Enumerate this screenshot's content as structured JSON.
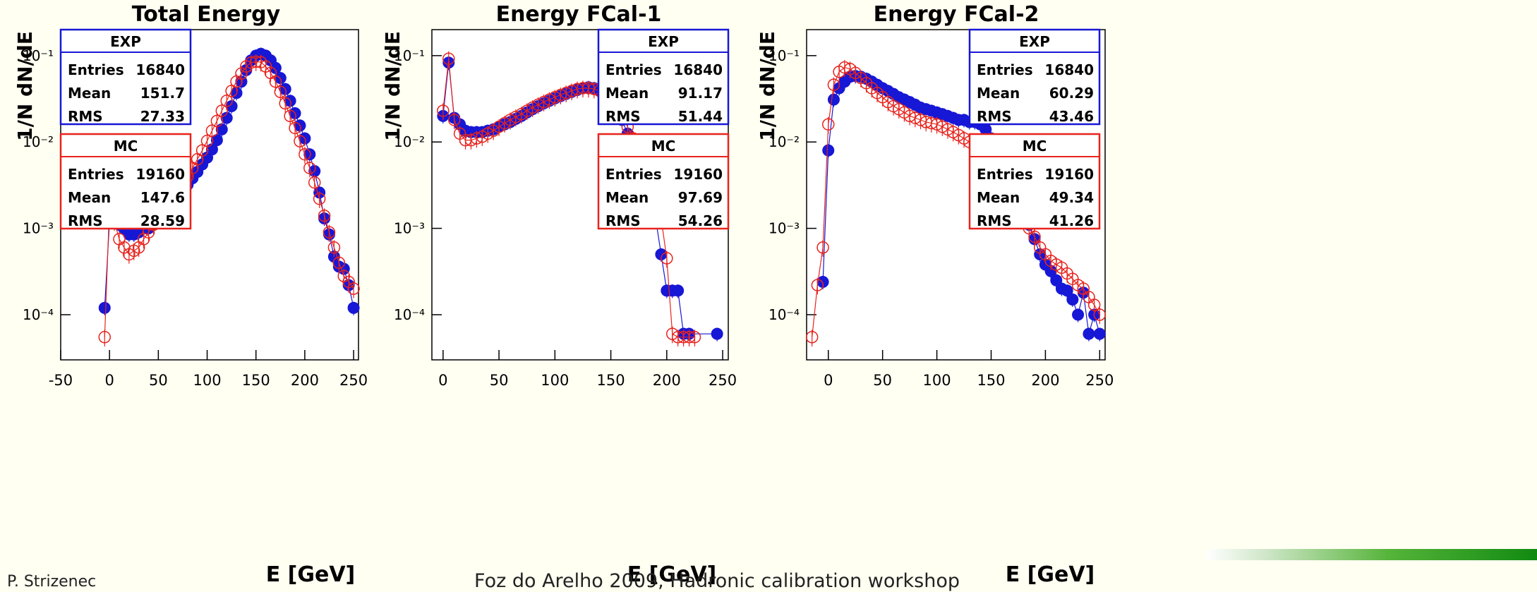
{
  "colors": {
    "exp": "#1717d6",
    "mc": "#e8231d",
    "background": "#fffff2"
  },
  "footer": {
    "author": "P. Strizenec",
    "venue": "Foz do Arelho 2009, Hadronic calibration workshop"
  },
  "chart_data": [
    {
      "type": "scatter",
      "title": "Total Energy",
      "xlabel": "E   [GeV]",
      "ylabel": "1/N dN/dE",
      "xlim": [
        -50,
        255
      ],
      "ylim": [
        3e-05,
        0.2
      ],
      "yscale": "log",
      "xticks": [
        "-50",
        "0",
        "50",
        "100",
        "150",
        "200",
        "250"
      ],
      "yticks": [
        "10⁻⁴",
        "10⁻³",
        "10⁻²",
        "10⁻¹"
      ],
      "stats": [
        {
          "label": "EXP",
          "entries": "16840",
          "mean": "151.7",
          "rms": "27.33"
        },
        {
          "label": "MC",
          "entries": "19160",
          "mean": "147.6",
          "rms": "28.59"
        }
      ],
      "series": [
        {
          "name": "EXP",
          "x": [
            -5,
            0,
            5,
            10,
            15,
            20,
            25,
            30,
            35,
            40,
            45,
            50,
            55,
            60,
            65,
            70,
            75,
            80,
            85,
            90,
            95,
            100,
            105,
            110,
            115,
            120,
            125,
            130,
            135,
            140,
            145,
            150,
            155,
            160,
            165,
            170,
            175,
            180,
            185,
            190,
            195,
            200,
            205,
            210,
            215,
            220,
            225,
            230,
            235,
            240,
            245,
            250
          ],
          "y": [
            0.00012,
            0.0012,
            0.0012,
            0.0011,
            0.001,
            0.00085,
            0.00085,
            0.0009,
            0.001,
            0.001,
            0.0011,
            0.0012,
            0.0014,
            0.0016,
            0.0019,
            0.0023,
            0.0027,
            0.0032,
            0.0038,
            0.0045,
            0.0055,
            0.0066,
            0.0082,
            0.0105,
            0.014,
            0.019,
            0.026,
            0.037,
            0.05,
            0.068,
            0.088,
            0.1,
            0.105,
            0.1,
            0.088,
            0.072,
            0.055,
            0.041,
            0.03,
            0.0215,
            0.0155,
            0.011,
            0.0072,
            0.0046,
            0.0026,
            0.0013,
            0.00085,
            0.00047,
            0.00036,
            0.00034,
            0.00022,
            0.00012
          ]
        },
        {
          "name": "MC",
          "x": [
            -5,
            0,
            5,
            10,
            15,
            20,
            25,
            30,
            35,
            40,
            45,
            50,
            55,
            60,
            65,
            70,
            75,
            80,
            85,
            90,
            95,
            100,
            105,
            110,
            115,
            120,
            125,
            130,
            135,
            140,
            145,
            150,
            155,
            160,
            165,
            170,
            175,
            180,
            185,
            190,
            195,
            200,
            205,
            210,
            215,
            220,
            225,
            230,
            235,
            240,
            245,
            250
          ],
          "y": [
            5.5e-05,
            0.00185,
            0.0012,
            0.00075,
            0.0006,
            0.0005,
            0.00055,
            0.0006,
            0.00075,
            0.0009,
            0.0011,
            0.0013,
            0.0015,
            0.0018,
            0.0021,
            0.0026,
            0.0032,
            0.004,
            0.005,
            0.0063,
            0.008,
            0.0103,
            0.0135,
            0.0175,
            0.023,
            0.03,
            0.039,
            0.05,
            0.062,
            0.075,
            0.083,
            0.085,
            0.084,
            0.075,
            0.063,
            0.05,
            0.038,
            0.028,
            0.02,
            0.0145,
            0.0102,
            0.0072,
            0.005,
            0.0034,
            0.0022,
            0.0014,
            0.0009,
            0.0006,
            0.0004,
            0.00028,
            0.00024,
            0.0002
          ]
        }
      ]
    },
    {
      "type": "scatter",
      "title": "Energy FCal-1",
      "xlabel": "E   [GeV]",
      "ylabel": "1/N dN/dE",
      "xlim": [
        -10,
        255
      ],
      "ylim": [
        3e-05,
        0.2
      ],
      "yscale": "log",
      "xticks": [
        "0",
        "50",
        "100",
        "150",
        "200",
        "250"
      ],
      "yticks": [
        "10⁻⁴",
        "10⁻³",
        "10⁻²",
        "10⁻¹"
      ],
      "stats": [
        {
          "label": "EXP",
          "entries": "16840",
          "mean": "91.17",
          "rms": "51.44"
        },
        {
          "label": "MC",
          "entries": "19160",
          "mean": "97.69",
          "rms": "54.26"
        }
      ],
      "series": [
        {
          "name": "EXP",
          "x": [
            0,
            5,
            10,
            15,
            20,
            25,
            30,
            35,
            40,
            45,
            50,
            55,
            60,
            65,
            70,
            75,
            80,
            85,
            90,
            95,
            100,
            105,
            110,
            115,
            120,
            125,
            130,
            135,
            140,
            145,
            150,
            155,
            160,
            165,
            170,
            175,
            180,
            185,
            190,
            195,
            200,
            205,
            210,
            215,
            220,
            245
          ],
          "y": [
            0.02,
            0.083,
            0.019,
            0.016,
            0.0135,
            0.013,
            0.013,
            0.013,
            0.0135,
            0.014,
            0.015,
            0.016,
            0.017,
            0.0185,
            0.02,
            0.022,
            0.024,
            0.026,
            0.028,
            0.03,
            0.032,
            0.034,
            0.036,
            0.038,
            0.04,
            0.042,
            0.043,
            0.042,
            0.04,
            0.036,
            0.03,
            0.024,
            0.018,
            0.0125,
            0.0085,
            0.0055,
            0.0035,
            0.0021,
            0.0013,
            0.0005,
            0.00019,
            0.00019,
            0.00019,
            6e-05,
            6e-05,
            6e-05
          ]
        },
        {
          "name": "MC",
          "x": [
            0,
            5,
            10,
            15,
            20,
            25,
            30,
            35,
            40,
            45,
            50,
            55,
            60,
            65,
            70,
            75,
            80,
            85,
            90,
            95,
            100,
            105,
            110,
            115,
            120,
            125,
            130,
            135,
            140,
            145,
            150,
            155,
            160,
            165,
            170,
            175,
            180,
            185,
            190,
            195,
            200,
            205,
            210,
            215,
            220,
            225
          ],
          "y": [
            0.023,
            0.092,
            0.018,
            0.0125,
            0.0105,
            0.0105,
            0.011,
            0.0115,
            0.0125,
            0.0135,
            0.015,
            0.0165,
            0.018,
            0.0195,
            0.021,
            0.023,
            0.025,
            0.027,
            0.029,
            0.031,
            0.033,
            0.035,
            0.037,
            0.039,
            0.041,
            0.042,
            0.042,
            0.041,
            0.039,
            0.035,
            0.03,
            0.025,
            0.02,
            0.015,
            0.011,
            0.0075,
            0.005,
            0.0032,
            0.002,
            0.0013,
            0.00045,
            6e-05,
            5.5e-05,
            5.5e-05,
            5.5e-05,
            5.5e-05
          ]
        }
      ]
    },
    {
      "type": "scatter",
      "title": "Energy FCal-2",
      "xlabel": "E   [GeV]",
      "ylabel": "1/N dN/dE",
      "xlim": [
        -20,
        255
      ],
      "ylim": [
        3e-05,
        0.2
      ],
      "yscale": "log",
      "xticks": [
        "0",
        "50",
        "100",
        "150",
        "200",
        "250"
      ],
      "yticks": [
        "10⁻⁴",
        "10⁻³",
        "10⁻²",
        "10⁻¹"
      ],
      "stats": [
        {
          "label": "EXP",
          "entries": "16840",
          "mean": "60.29",
          "rms": "43.46"
        },
        {
          "label": "MC",
          "entries": "19160",
          "mean": "49.34",
          "rms": "41.26"
        }
      ],
      "series": [
        {
          "name": "EXP",
          "x": [
            -5,
            0,
            5,
            10,
            15,
            20,
            25,
            30,
            35,
            40,
            45,
            50,
            55,
            60,
            65,
            70,
            75,
            80,
            85,
            90,
            95,
            100,
            105,
            110,
            115,
            120,
            125,
            130,
            135,
            140,
            145,
            150,
            155,
            160,
            165,
            170,
            175,
            180,
            185,
            190,
            195,
            200,
            205,
            210,
            215,
            220,
            225,
            230,
            235,
            240,
            245,
            250
          ],
          "y": [
            0.00024,
            0.008,
            0.031,
            0.042,
            0.05,
            0.057,
            0.058,
            0.057,
            0.054,
            0.05,
            0.046,
            0.042,
            0.039,
            0.036,
            0.033,
            0.031,
            0.029,
            0.027,
            0.025,
            0.024,
            0.023,
            0.022,
            0.021,
            0.02,
            0.019,
            0.018,
            0.018,
            0.017,
            0.017,
            0.016,
            0.014,
            0.011,
            0.0085,
            0.0065,
            0.0046,
            0.0033,
            0.0023,
            0.0016,
            0.0011,
            0.00075,
            0.0005,
            0.00038,
            0.00032,
            0.00025,
            0.0002,
            0.00019,
            0.00015,
            0.0001,
            0.00018,
            6e-05,
            0.0001,
            6e-05
          ]
        },
        {
          "name": "MC",
          "x": [
            -15,
            -10,
            -5,
            0,
            5,
            10,
            15,
            20,
            25,
            30,
            35,
            40,
            45,
            50,
            55,
            60,
            65,
            70,
            75,
            80,
            85,
            90,
            95,
            100,
            105,
            110,
            115,
            120,
            125,
            130,
            135,
            140,
            145,
            150,
            155,
            160,
            165,
            170,
            175,
            180,
            185,
            190,
            195,
            200,
            205,
            210,
            215,
            220,
            225,
            230,
            235,
            240,
            245,
            250
          ],
          "y": [
            5.5e-05,
            0.00022,
            0.0006,
            0.016,
            0.046,
            0.065,
            0.073,
            0.07,
            0.063,
            0.055,
            0.048,
            0.042,
            0.037,
            0.033,
            0.029,
            0.026,
            0.024,
            0.022,
            0.02,
            0.019,
            0.018,
            0.017,
            0.0165,
            0.016,
            0.015,
            0.014,
            0.013,
            0.012,
            0.011,
            0.01,
            0.0085,
            0.0072,
            0.006,
            0.005,
            0.004,
            0.0032,
            0.0025,
            0.002,
            0.0016,
            0.0013,
            0.001,
            0.0008,
            0.0006,
            0.0005,
            0.00042,
            0.00038,
            0.00035,
            0.0003,
            0.00026,
            0.00022,
            0.0002,
            0.00016,
            0.00013,
            0.0001
          ]
        }
      ]
    }
  ]
}
